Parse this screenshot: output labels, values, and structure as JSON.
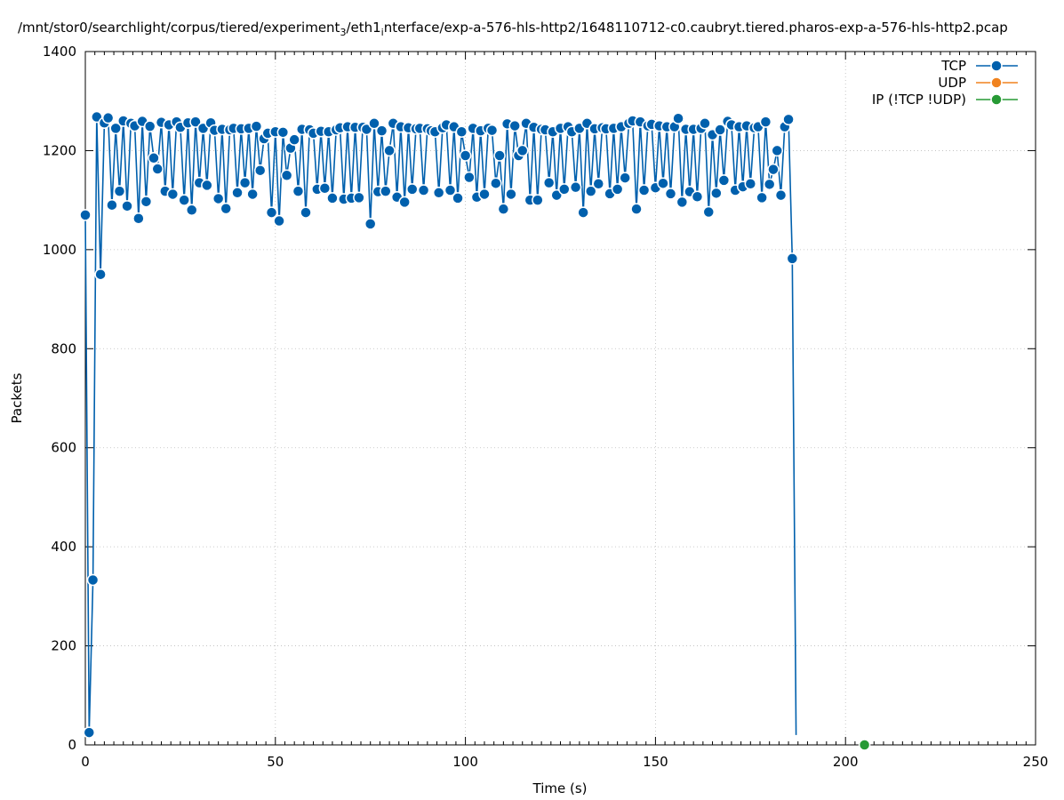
{
  "chart_data": {
    "type": "line",
    "title": "/mnt/stor0/searchlight/corpus/tiered/experiment",
    "title_sub": "3",
    "title_mid": "/eth1",
    "title_sub2": "i",
    "title_rest": "nterface/exp-a-576-hls-http2/1648110712-c0.caubryt.tiered.pharos-exp-a-576-hls-http2.pcap",
    "xlabel": "Time (s)",
    "ylabel": "Packets",
    "xlim": [
      0,
      250
    ],
    "ylim": [
      0,
      1400
    ],
    "xticks": [
      "0",
      "50",
      "100",
      "150",
      "200",
      "250"
    ],
    "yticks": [
      "0",
      "200",
      "400",
      "600",
      "800",
      "1000",
      "1200",
      "1400"
    ],
    "grid": true,
    "legend_position": "top-right",
    "series": [
      {
        "name": "TCP",
        "color": "#0060ad",
        "marker": "circle",
        "x": [
          0,
          1,
          2,
          3,
          4,
          5,
          6,
          7,
          8,
          9,
          10,
          11,
          12,
          13,
          14,
          15,
          16,
          17,
          18,
          19,
          20,
          21,
          22,
          23,
          24,
          25,
          26,
          27,
          28,
          29,
          30,
          31,
          32,
          33,
          34,
          35,
          36,
          37,
          38,
          39,
          40,
          41,
          42,
          43,
          44,
          45,
          46,
          47,
          48,
          49,
          50,
          51,
          52,
          53,
          54,
          55,
          56,
          57,
          58,
          59,
          60,
          61,
          62,
          63,
          64,
          65,
          66,
          67,
          68,
          69,
          70,
          71,
          72,
          73,
          74,
          75,
          76,
          77,
          78,
          79,
          80,
          81,
          82,
          83,
          84,
          85,
          86,
          87,
          88,
          89,
          90,
          91,
          92,
          93,
          94,
          95,
          96,
          97,
          98,
          99,
          100,
          101,
          102,
          103,
          104,
          105,
          106,
          107,
          108,
          109,
          110,
          111,
          112,
          113,
          114,
          115,
          116,
          117,
          118,
          119,
          120,
          121,
          122,
          123,
          124,
          125,
          126,
          127,
          128,
          129,
          130,
          131,
          132,
          133,
          134,
          135,
          136,
          137,
          138,
          139,
          140,
          141,
          142,
          143,
          144,
          145,
          146,
          147,
          148,
          149,
          150,
          151,
          152,
          153,
          154,
          155,
          156,
          157,
          158,
          159,
          160,
          161,
          162,
          163,
          164,
          165,
          166,
          167,
          168,
          169,
          170,
          171,
          172,
          173,
          174,
          175,
          176,
          177,
          178,
          179,
          180,
          181,
          182,
          183,
          184,
          185,
          186,
          187
        ],
        "y": [
          1070,
          25,
          333,
          1268,
          950,
          1256,
          1266,
          1090,
          1245,
          1118,
          1260,
          1088,
          1255,
          1250,
          1063,
          1259,
          1097,
          1249,
          1185,
          1163,
          1257,
          1118,
          1252,
          1112,
          1258,
          1247,
          1100,
          1256,
          1080,
          1258,
          1135,
          1245,
          1130,
          1256,
          1241,
          1103,
          1243,
          1083,
          1242,
          1245,
          1115,
          1244,
          1135,
          1245,
          1112,
          1249,
          1160,
          1224,
          1235,
          1075,
          1238,
          1058,
          1237,
          1150,
          1205,
          1222,
          1118,
          1243,
          1075,
          1242,
          1235,
          1122,
          1239,
          1124,
          1238,
          1104,
          1242,
          1246,
          1102,
          1248,
          1104,
          1247,
          1105,
          1247,
          1243,
          1052,
          1255,
          1117,
          1240,
          1118,
          1200,
          1255,
          1106,
          1248,
          1096,
          1246,
          1122,
          1244,
          1245,
          1120,
          1244,
          1240,
          1238,
          1115,
          1246,
          1252,
          1120,
          1248,
          1104,
          1238,
          1190,
          1146,
          1245,
          1106,
          1240,
          1112,
          1245,
          1241,
          1134,
          1190,
          1082,
          1254,
          1112,
          1250,
          1190,
          1200,
          1255,
          1100,
          1247,
          1100,
          1243,
          1242,
          1135,
          1238,
          1110,
          1245,
          1122,
          1248,
          1238,
          1126,
          1245,
          1075,
          1255,
          1118,
          1244,
          1133,
          1246,
          1244,
          1113,
          1245,
          1122,
          1248,
          1145,
          1255,
          1260,
          1082,
          1258,
          1120,
          1250,
          1253,
          1125,
          1250,
          1134,
          1248,
          1113,
          1248,
          1265,
          1096,
          1243,
          1117,
          1243,
          1107,
          1245,
          1255,
          1076,
          1232,
          1114,
          1242,
          1140,
          1259,
          1252,
          1120,
          1248,
          1127,
          1250,
          1133,
          1246,
          1248,
          1105,
          1258,
          1132,
          1162,
          1200,
          1110,
          1248,
          1263,
          982,
          20
        ]
      },
      {
        "name": "UDP",
        "color": "#f0821e",
        "marker": "circle",
        "x": [],
        "y": []
      },
      {
        "name": "IP (!TCP  !UDP)",
        "color": "#279a35",
        "marker": "circle",
        "x": [
          205
        ],
        "y": [
          0
        ]
      }
    ]
  }
}
